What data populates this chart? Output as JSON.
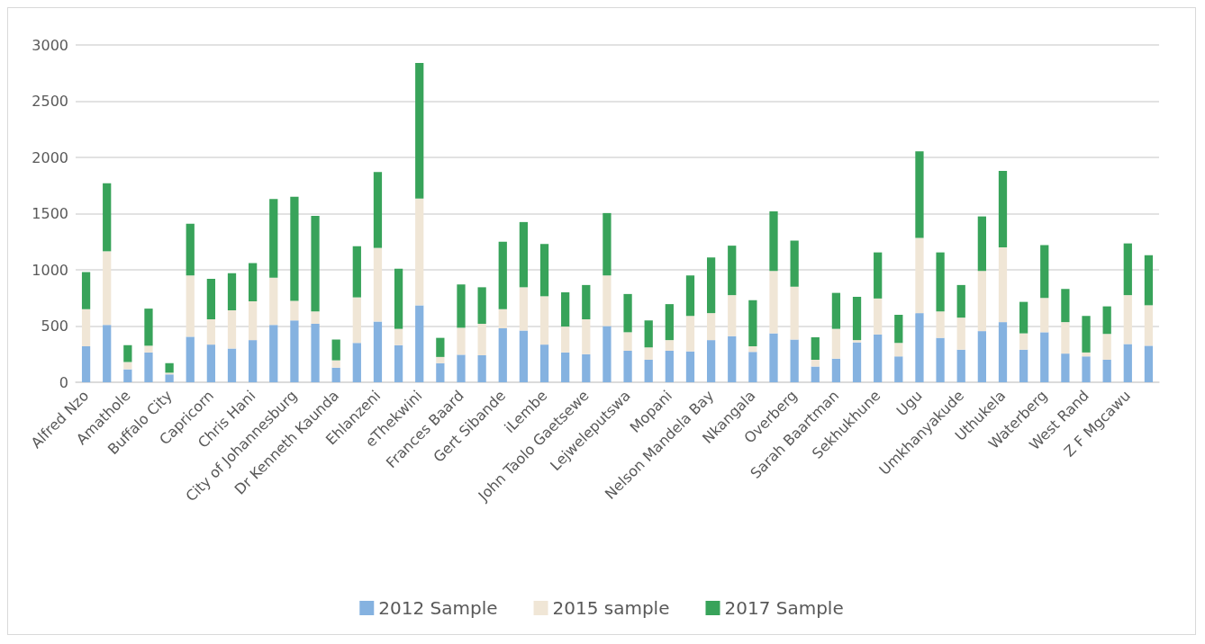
{
  "chart_data": {
    "type": "bar",
    "stacked": true,
    "grid": "y",
    "legend": "bottom",
    "categories": [
      "Alfred Nzo",
      null,
      "Amathole",
      null,
      "Buffalo City",
      null,
      "Capricorn",
      null,
      "Chris Hani",
      null,
      "City of Johannesburg",
      null,
      "Dr Kenneth Kaunda",
      null,
      "Ehlanzeni",
      null,
      "eThekwini",
      null,
      "Frances Baard",
      null,
      "Gert Sibande",
      null,
      "iLembe",
      null,
      "John Taolo Gaetsewe",
      null,
      "Lejweleputswa",
      null,
      "Mopani",
      null,
      "Nelson Mandela Bay",
      null,
      "Nkangala",
      null,
      "Overberg",
      null,
      "Sarah Baartman",
      null,
      "Sekhukhune",
      null,
      "Ugu",
      null,
      "Umkhanyakude",
      null,
      "Uthukela",
      null,
      "Waterberg",
      null,
      "West Rand",
      null,
      "Z F Mgcawu",
      null
    ],
    "ylim": [
      0,
      3000
    ],
    "yticks": [
      0,
      500,
      1000,
      1500,
      2000,
      2500,
      3000
    ],
    "series": [
      {
        "name": "2012 Sample",
        "color": "#85b2e0",
        "values": [
          320,
          510,
          115,
          265,
          70,
          405,
          335,
          300,
          375,
          510,
          550,
          520,
          130,
          350,
          540,
          330,
          685,
          170,
          245,
          240,
          480,
          460,
          335,
          265,
          250,
          500,
          280,
          200,
          280,
          275,
          375,
          410,
          270,
          435,
          380,
          140,
          210,
          355,
          425,
          230,
          615,
          395,
          290,
          455,
          535,
          290,
          445,
          255,
          230,
          200,
          340,
          325
        ]
      },
      {
        "name": "2015 sample",
        "color": "#f0e6d6",
        "values": [
          330,
          655,
          65,
          60,
          15,
          545,
          225,
          340,
          345,
          420,
          175,
          110,
          65,
          405,
          655,
          145,
          950,
          55,
          240,
          280,
          170,
          385,
          430,
          230,
          310,
          450,
          165,
          110,
          95,
          315,
          240,
          365,
          50,
          555,
          470,
          60,
          265,
          20,
          320,
          120,
          670,
          235,
          285,
          535,
          665,
          145,
          305,
          280,
          35,
          230,
          435,
          360
        ]
      },
      {
        "name": "2017 Sample",
        "color": "#38a35a",
        "values": [
          330,
          605,
          150,
          330,
          85,
          460,
          360,
          330,
          340,
          700,
          925,
          850,
          185,
          455,
          675,
          535,
          1205,
          170,
          385,
          325,
          600,
          580,
          465,
          305,
          305,
          555,
          340,
          240,
          320,
          360,
          495,
          440,
          410,
          530,
          410,
          200,
          320,
          385,
          410,
          250,
          770,
          525,
          290,
          485,
          680,
          280,
          470,
          295,
          325,
          245,
          460,
          445
        ]
      }
    ]
  }
}
